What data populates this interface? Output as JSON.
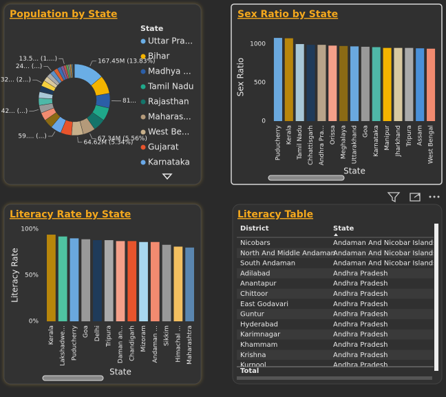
{
  "chart_data": [
    {
      "type": "pie",
      "title": "Population by State",
      "legend_title": "State",
      "categories": [
        "Uttar Pra...",
        "Bihar",
        "Madhya ...",
        "Tamil Nadu",
        "Rajasthan",
        "Maharas...",
        "West Be...",
        "Gujarat",
        "Karnataka",
        null,
        null,
        null,
        null,
        null,
        null,
        null,
        null,
        null,
        null,
        null,
        null,
        null,
        null,
        null,
        null,
        null,
        null,
        null,
        null,
        null,
        null,
        null,
        null
      ],
      "values": [
        167.45,
        100,
        81,
        72,
        68.5,
        67.34,
        64.62,
        60.4,
        59,
        50,
        45,
        42,
        40,
        35,
        33,
        32,
        27,
        25,
        24,
        22,
        20,
        16,
        13.5,
        12,
        10,
        8,
        7,
        3,
        2,
        1.5,
        1.2,
        1,
        0.6
      ],
      "value_labels": [
        "167.45M (13.83%)",
        null,
        "81...",
        null,
        null,
        "67.34M (5.56%)",
        "64.62M (5.34%)",
        null,
        "59.... (...)",
        null,
        null,
        "42... (...)",
        null,
        null,
        null,
        "32... (2...)",
        null,
        null,
        "24... (...)",
        null,
        null,
        null,
        "13.5... (1....)",
        null,
        null,
        null,
        null,
        null,
        null,
        null,
        null,
        null,
        null
      ],
      "colors": [
        "#6aaee6",
        "#f4b400",
        "#2b5ea7",
        "#1fa88a",
        "#14746a",
        "#b49a7a",
        "#c7b08b",
        "#e8542c",
        "#6aa8e8",
        "#8b6a14",
        "#f28b70",
        "#999999",
        "#4fb8a8",
        "#a8c8d8",
        "#1f3b5a",
        "#f4d03f",
        "#d8c8a0",
        "#aaaaaa",
        "#5b8fc7",
        "#d9602f",
        "#3c6fb5",
        "#7a5c99",
        "#c05050",
        "#58a058",
        "#888888",
        "#e0a040",
        "#4a7a9a",
        "#b0b060",
        "#705040",
        "#60a0c0",
        "#c08090",
        "#90c070",
        "#606060"
      ]
    },
    {
      "type": "bar",
      "title": "Sex Ratio by State",
      "xlabel": "State",
      "ylabel": "Sex Ratio",
      "categories": [
        "Puducherry",
        "Kerala",
        "Tamil Nadu",
        "Chhattisgarh",
        "Andhra Pra...",
        "Orissa",
        "Meghalaya",
        "Uttarakhand",
        "Goa",
        "Karnataka",
        "Manipur",
        "Jharkhand",
        "Tripura",
        "Assam",
        "West Bengal"
      ],
      "values": [
        1080,
        1075,
        1000,
        990,
        990,
        980,
        975,
        970,
        965,
        960,
        950,
        950,
        950,
        945,
        940
      ],
      "colors": [
        "#6aa8de",
        "#b8860b",
        "#a8c8d8",
        "#1f3b5a",
        "#b8a48a",
        "#f4a08a",
        "#8b6a14",
        "#6aa8de",
        "#999999",
        "#4fb8a8",
        "#f4b400",
        "#d8c8a0",
        "#aaaaaa",
        "#4a90d9",
        "#f28b70"
      ],
      "ylim": [
        0,
        1120
      ],
      "yticks": [
        0,
        500,
        1000
      ]
    },
    {
      "type": "bar",
      "title": "Literacy Rate by State",
      "xlabel": "State",
      "ylabel": "Literacy Rate",
      "categories": [
        "Kerala",
        "Lakshadwe...",
        "Puducherry",
        "Goa",
        "Delhi",
        "Tripura",
        "Daman an...",
        "Chandigarh",
        "Mizoram",
        "Andaman ...",
        "Sikkim",
        "Himachal ...",
        "Maharashtra"
      ],
      "values": [
        94,
        92,
        90,
        89,
        88,
        88,
        87,
        87,
        86,
        86,
        83,
        81,
        80
      ],
      "colors": [
        "#b8860b",
        "#4fc3a1",
        "#6aa8de",
        "#999999",
        "#1f3b5a",
        "#aaaaaa",
        "#f4a08a",
        "#e8542c",
        "#a8d8f0",
        "#f28b70",
        "#999999",
        "#f4c060",
        "#5a86b0"
      ],
      "ylim": [
        0,
        102
      ],
      "yticks": [
        {
          "value": 0,
          "label": "0%"
        },
        {
          "value": 50,
          "label": "50%"
        },
        {
          "value": 100,
          "label": "100%"
        }
      ]
    }
  ],
  "table": {
    "title": "Literacy Table",
    "columns": [
      "District",
      "State"
    ],
    "rows": [
      [
        "Nicobars",
        "Andaman And Nicobar Islands"
      ],
      [
        "North And Middle Andaman",
        "Andaman And Nicobar Islands"
      ],
      [
        "South Andaman",
        "Andaman And Nicobar Islands"
      ],
      [
        "Adilabad",
        "Andhra Pradesh"
      ],
      [
        "Anantapur",
        "Andhra Pradesh"
      ],
      [
        "Chittoor",
        "Andhra Pradesh"
      ],
      [
        "East Godavari",
        "Andhra Pradesh"
      ],
      [
        "Guntur",
        "Andhra Pradesh"
      ],
      [
        "Hyderabad",
        "Andhra Pradesh"
      ],
      [
        "Karimnagar",
        "Andhra Pradesh"
      ],
      [
        "Khammam",
        "Andhra Pradesh"
      ],
      [
        "Krishna",
        "Andhra Pradesh"
      ],
      [
        "Kurnool",
        "Andhra Pradesh"
      ]
    ],
    "total": "Total"
  }
}
